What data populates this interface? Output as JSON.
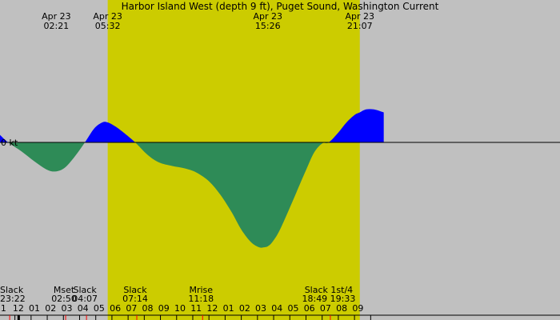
{
  "chart_data": {
    "type": "area",
    "title": "Harbor Island West (depth 9 ft), Puget Sound, Washington Current",
    "unit_label": "0 kt",
    "colors": {
      "night": "#c0c0c0",
      "day": "#cccc00",
      "flood": "#0000ff",
      "ebb": "#2e8b57",
      "axis": "#000000",
      "moon_tick": "#ff0000"
    },
    "x_range": [
      -1.13,
      33.5
    ],
    "y_range": [
      -2.05,
      0.83
    ],
    "daylight": [
      5.53,
      21.12
    ],
    "top_events": [
      {
        "date": "Apr 23",
        "time": "02:21",
        "x": 2.35
      },
      {
        "date": "Apr 23",
        "time": "05:32",
        "x": 5.53
      },
      {
        "date": "Apr 23",
        "time": "15:26",
        "x": 15.43
      },
      {
        "date": "Apr 23",
        "time": "21:07",
        "x": 21.12
      }
    ],
    "bottom_events": [
      {
        "label": "Slack",
        "time": "23:22",
        "x": -0.63
      },
      {
        "label": "Mset",
        "time": "02:50",
        "x": 2.83
      },
      {
        "label": "Slack",
        "time": "04:07",
        "x": 4.12
      },
      {
        "label": "Slack",
        "time": "07:14",
        "x": 7.23
      },
      {
        "label": "Mrise",
        "time": "11:18",
        "x": 11.3
      },
      {
        "label": "Slack 1st/4",
        "time": "18:49 19:33",
        "x": 19.2
      }
    ],
    "hour_ticks": [
      {
        "label": ".1",
        "x": -1
      },
      {
        "label": "12",
        "x": 0
      },
      {
        "label": "01",
        "x": 1
      },
      {
        "label": "02",
        "x": 2
      },
      {
        "label": "03",
        "x": 3
      },
      {
        "label": "04",
        "x": 4
      },
      {
        "label": "05",
        "x": 5
      },
      {
        "label": "06",
        "x": 6
      },
      {
        "label": "07",
        "x": 7
      },
      {
        "label": "08",
        "x": 8
      },
      {
        "label": "09",
        "x": 9
      },
      {
        "label": "10",
        "x": 10
      },
      {
        "label": "11",
        "x": 11
      },
      {
        "label": "12",
        "x": 12
      },
      {
        "label": "01",
        "x": 13
      },
      {
        "label": "02",
        "x": 14
      },
      {
        "label": "03",
        "x": 15
      },
      {
        "label": "04",
        "x": 16
      },
      {
        "label": "05",
        "x": 17
      },
      {
        "label": "06",
        "x": 18
      },
      {
        "label": "07",
        "x": 19
      },
      {
        "label": "08",
        "x": 20
      },
      {
        "label": "09",
        "x": 21
      }
    ],
    "series": [
      {
        "x": [
          -1.13,
          -0.63,
          0.2,
          1.0,
          1.8,
          2.35,
          2.9,
          3.5,
          4.12,
          4.7,
          5.2,
          5.53,
          6.0,
          6.5,
          7.23,
          8.0,
          8.7,
          9.5,
          10.3,
          11.0,
          11.8,
          12.5,
          13.2,
          13.8,
          14.4,
          14.9,
          15.2,
          15.43,
          15.7,
          16.1,
          16.6,
          17.2,
          17.8,
          18.3,
          18.8,
          19.2,
          19.8,
          20.3,
          20.8,
          21.12,
          21.5,
          22.0,
          22.6
        ],
        "y": [
          0.15,
          0.0,
          -0.18,
          -0.38,
          -0.55,
          -0.58,
          -0.5,
          -0.28,
          0.0,
          0.28,
          0.4,
          0.4,
          0.32,
          0.2,
          0.0,
          -0.25,
          -0.4,
          -0.47,
          -0.52,
          -0.6,
          -0.78,
          -1.05,
          -1.4,
          -1.75,
          -2.0,
          -2.1,
          -2.1,
          -2.08,
          -2.0,
          -1.8,
          -1.45,
          -1.0,
          -0.55,
          -0.2,
          -0.02,
          0.0,
          0.2,
          0.4,
          0.55,
          0.6,
          0.66,
          0.66,
          0.6
        ]
      }
    ]
  }
}
